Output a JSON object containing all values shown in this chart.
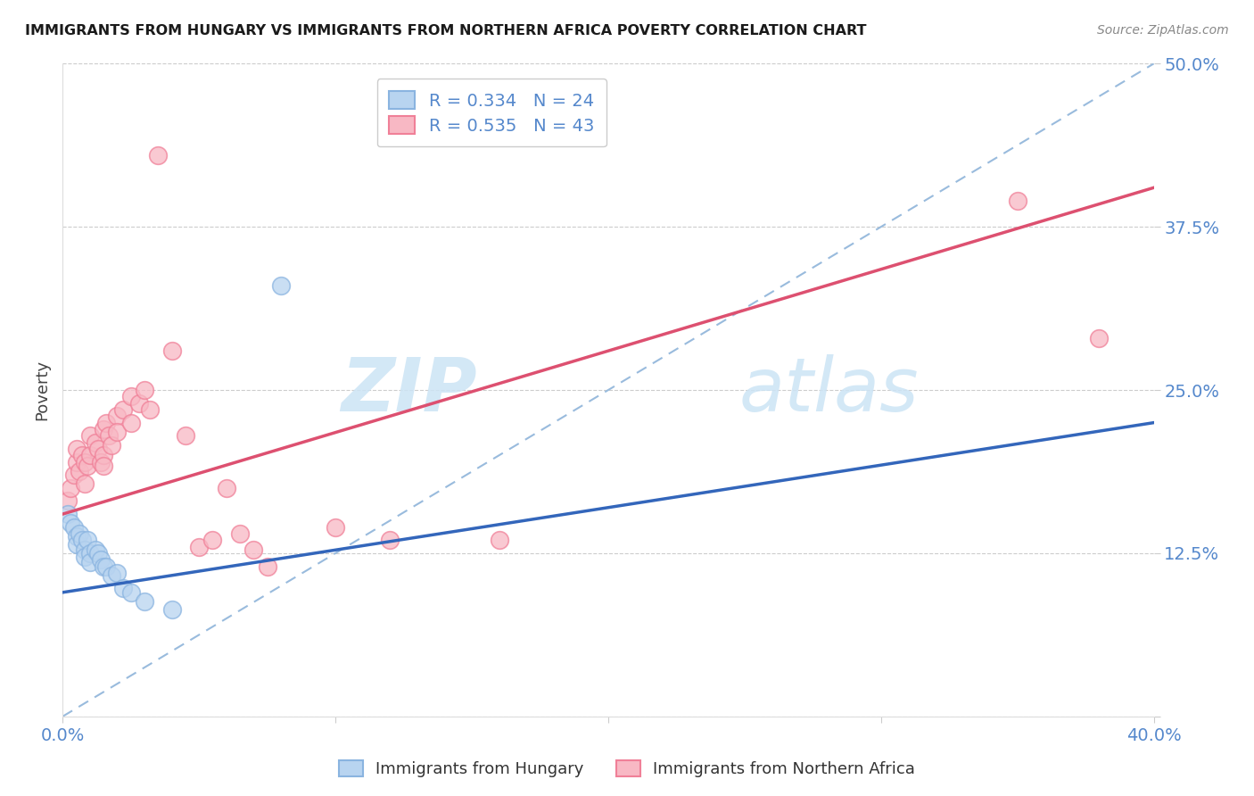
{
  "title": "IMMIGRANTS FROM HUNGARY VS IMMIGRANTS FROM NORTHERN AFRICA POVERTY CORRELATION CHART",
  "source": "Source: ZipAtlas.com",
  "ylabel": "Poverty",
  "xmin": 0.0,
  "xmax": 0.4,
  "ymin": 0.0,
  "ymax": 0.5,
  "yticks": [
    0.0,
    0.125,
    0.25,
    0.375,
    0.5
  ],
  "ytick_labels": [
    "",
    "12.5%",
    "25.0%",
    "37.5%",
    "50.0%"
  ],
  "xticks": [
    0.0,
    0.1,
    0.2,
    0.3,
    0.4
  ],
  "xtick_labels": [
    "0.0%",
    "",
    "",
    "",
    "40.0%"
  ],
  "grid_color": "#cccccc",
  "background_color": "#ffffff",
  "legend_R1": "R = 0.334",
  "legend_N1": "N = 24",
  "legend_R2": "R = 0.535",
  "legend_N2": "N = 43",
  "color_hungary": "#8ab4e0",
  "color_hungary_fill": "#b8d4f0",
  "color_n_africa": "#f08098",
  "color_n_africa_fill": "#f8b8c4",
  "color_axis_labels": "#5588cc",
  "color_dashed_line": "#99bbdd",
  "watermark_color": "#ddeeff",
  "hungary_scatter": [
    [
      0.002,
      0.155
    ],
    [
      0.003,
      0.148
    ],
    [
      0.004,
      0.145
    ],
    [
      0.005,
      0.138
    ],
    [
      0.005,
      0.132
    ],
    [
      0.006,
      0.14
    ],
    [
      0.007,
      0.135
    ],
    [
      0.008,
      0.128
    ],
    [
      0.008,
      0.122
    ],
    [
      0.009,
      0.135
    ],
    [
      0.01,
      0.125
    ],
    [
      0.01,
      0.118
    ],
    [
      0.012,
      0.128
    ],
    [
      0.013,
      0.125
    ],
    [
      0.014,
      0.12
    ],
    [
      0.015,
      0.115
    ],
    [
      0.016,
      0.115
    ],
    [
      0.018,
      0.108
    ],
    [
      0.02,
      0.11
    ],
    [
      0.022,
      0.098
    ],
    [
      0.025,
      0.095
    ],
    [
      0.03,
      0.088
    ],
    [
      0.04,
      0.082
    ],
    [
      0.08,
      0.33
    ]
  ],
  "n_africa_scatter": [
    [
      0.002,
      0.165
    ],
    [
      0.003,
      0.175
    ],
    [
      0.004,
      0.185
    ],
    [
      0.005,
      0.195
    ],
    [
      0.005,
      0.205
    ],
    [
      0.006,
      0.188
    ],
    [
      0.007,
      0.2
    ],
    [
      0.008,
      0.195
    ],
    [
      0.008,
      0.178
    ],
    [
      0.009,
      0.192
    ],
    [
      0.01,
      0.2
    ],
    [
      0.01,
      0.215
    ],
    [
      0.012,
      0.21
    ],
    [
      0.013,
      0.205
    ],
    [
      0.014,
      0.195
    ],
    [
      0.015,
      0.22
    ],
    [
      0.015,
      0.2
    ],
    [
      0.015,
      0.192
    ],
    [
      0.016,
      0.225
    ],
    [
      0.017,
      0.215
    ],
    [
      0.018,
      0.208
    ],
    [
      0.02,
      0.23
    ],
    [
      0.02,
      0.218
    ],
    [
      0.022,
      0.235
    ],
    [
      0.025,
      0.245
    ],
    [
      0.025,
      0.225
    ],
    [
      0.028,
      0.24
    ],
    [
      0.03,
      0.25
    ],
    [
      0.032,
      0.235
    ],
    [
      0.035,
      0.43
    ],
    [
      0.04,
      0.28
    ],
    [
      0.045,
      0.215
    ],
    [
      0.05,
      0.13
    ],
    [
      0.055,
      0.135
    ],
    [
      0.06,
      0.175
    ],
    [
      0.065,
      0.14
    ],
    [
      0.07,
      0.128
    ],
    [
      0.075,
      0.115
    ],
    [
      0.1,
      0.145
    ],
    [
      0.12,
      0.135
    ],
    [
      0.16,
      0.135
    ],
    [
      0.35,
      0.395
    ],
    [
      0.38,
      0.29
    ]
  ],
  "hungary_line_x": [
    0.0,
    0.4
  ],
  "hungary_line_y": [
    0.095,
    0.225
  ],
  "n_africa_line_x": [
    0.0,
    0.4
  ],
  "n_africa_line_y": [
    0.155,
    0.405
  ],
  "dashed_line_x": [
    0.0,
    0.4
  ],
  "dashed_line_y": [
    0.0,
    0.5
  ]
}
